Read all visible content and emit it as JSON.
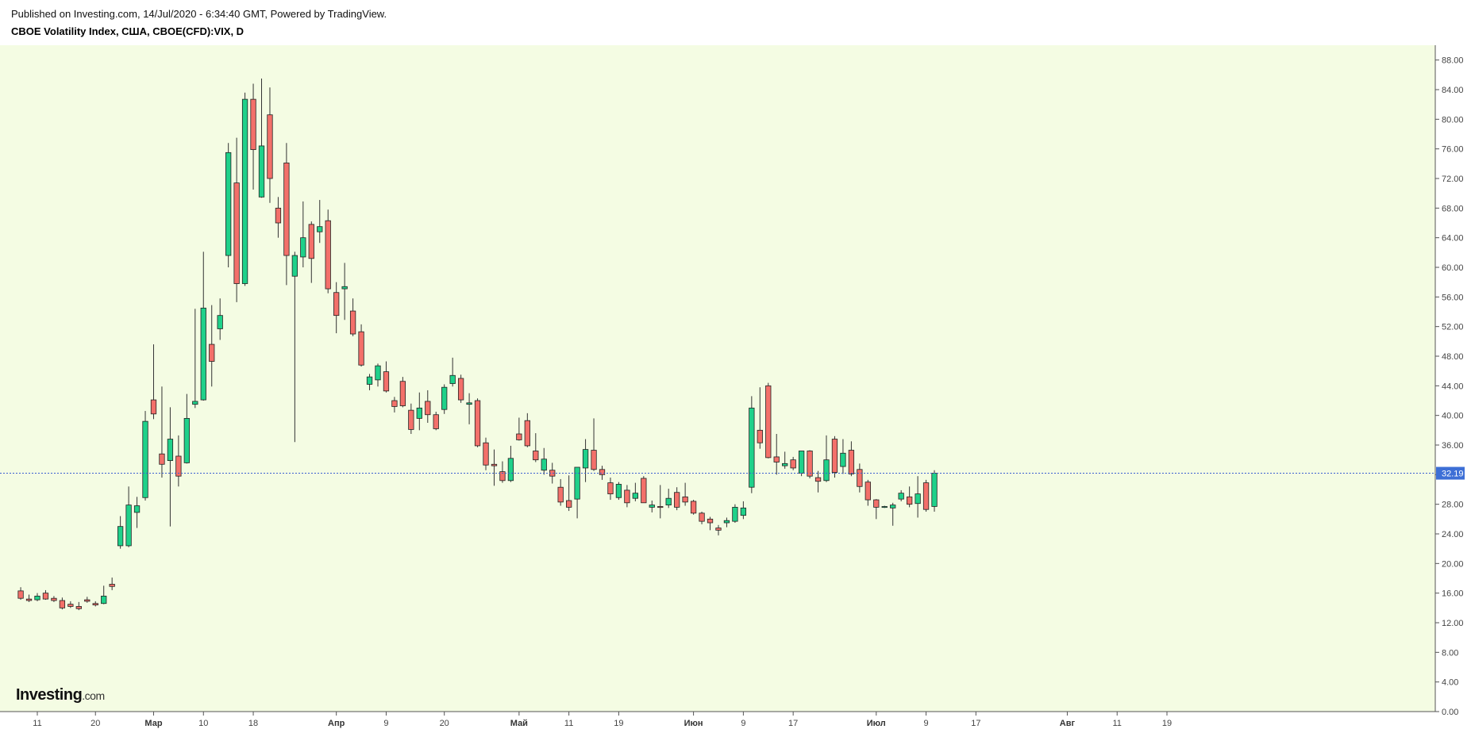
{
  "header": {
    "published": "Published on Investing.com, 14/Jul/2020 - 6:34:40 GMT, Powered by TradingView.",
    "symbol": "CBOE Volatility Index, США, CBOE(CFD):VIX, D"
  },
  "logo": {
    "name": "Investing",
    "suffix": ".com"
  },
  "colors": {
    "plot_bg": "#f4fce3",
    "up": "#1fd18a",
    "down": "#f3706a",
    "wick": "#333333",
    "last_price_line": "#3a5fd0",
    "last_price_badge": "#3d6fd6"
  },
  "chart_data": {
    "type": "candlestick",
    "title": "CBOE Volatility Index, США, CBOE(CFD):VIX, D",
    "ylim": [
      0,
      90
    ],
    "y_ticks": [
      "0.00",
      "4.00",
      "8.00",
      "12.00",
      "16.00",
      "20.00",
      "24.00",
      "28.00",
      "32.00",
      "36.00",
      "40.00",
      "44.00",
      "48.00",
      "52.00",
      "56.00",
      "60.00",
      "64.00",
      "68.00",
      "72.00",
      "76.00",
      "80.00",
      "84.00",
      "88.00"
    ],
    "last_price": "32.19",
    "x_ticks": [
      {
        "label": "11",
        "date": "2020-02-11"
      },
      {
        "label": "20",
        "date": "2020-02-20"
      },
      {
        "label": "Мар",
        "date": "2020-03-01",
        "month": true
      },
      {
        "label": "10",
        "date": "2020-03-10"
      },
      {
        "label": "18",
        "date": "2020-03-18"
      },
      {
        "label": "Апр",
        "date": "2020-04-01",
        "month": true
      },
      {
        "label": "9",
        "date": "2020-04-09"
      },
      {
        "label": "20",
        "date": "2020-04-20"
      },
      {
        "label": "Май",
        "date": "2020-05-01",
        "month": true
      },
      {
        "label": "11",
        "date": "2020-05-11"
      },
      {
        "label": "19",
        "date": "2020-05-19"
      },
      {
        "label": "Июн",
        "date": "2020-06-01",
        "month": true
      },
      {
        "label": "9",
        "date": "2020-06-09"
      },
      {
        "label": "17",
        "date": "2020-06-17"
      },
      {
        "label": "Июл",
        "date": "2020-07-01",
        "month": true
      },
      {
        "label": "9",
        "date": "2020-07-09"
      },
      {
        "label": "17",
        "date": "2020-07-17"
      },
      {
        "label": "Авг",
        "date": "2020-08-01",
        "month": true
      },
      {
        "label": "11",
        "date": "2020-08-11"
      },
      {
        "label": "19",
        "date": "2020-08-19"
      }
    ],
    "candles": [
      {
        "o": 16.3,
        "h": 16.8,
        "l": 15.1,
        "c": 15.3
      },
      {
        "o": 15.2,
        "h": 15.8,
        "l": 14.8,
        "c": 15.0
      },
      {
        "o": 15.1,
        "h": 16.0,
        "l": 14.9,
        "c": 15.6
      },
      {
        "o": 16.0,
        "h": 16.4,
        "l": 15.1,
        "c": 15.2
      },
      {
        "o": 15.3,
        "h": 15.6,
        "l": 14.8,
        "c": 15.0
      },
      {
        "o": 15.0,
        "h": 15.4,
        "l": 13.8,
        "c": 14.0
      },
      {
        "o": 14.5,
        "h": 14.9,
        "l": 14.0,
        "c": 14.2
      },
      {
        "o": 14.2,
        "h": 14.8,
        "l": 13.7,
        "c": 13.9
      },
      {
        "o": 15.1,
        "h": 15.5,
        "l": 14.7,
        "c": 14.9
      },
      {
        "o": 14.6,
        "h": 14.9,
        "l": 14.2,
        "c": 14.4
      },
      {
        "o": 14.6,
        "h": 17.0,
        "l": 14.5,
        "c": 15.6
      },
      {
        "o": 17.2,
        "h": 18.1,
        "l": 16.4,
        "c": 16.9
      },
      {
        "o": 22.4,
        "h": 26.4,
        "l": 22.0,
        "c": 25.0
      },
      {
        "o": 22.4,
        "h": 30.4,
        "l": 22.2,
        "c": 27.9
      },
      {
        "o": 26.9,
        "h": 29.0,
        "l": 24.8,
        "c": 27.8
      },
      {
        "o": 28.9,
        "h": 40.6,
        "l": 28.5,
        "c": 39.2
      },
      {
        "o": 42.1,
        "h": 49.6,
        "l": 39.5,
        "c": 40.2
      },
      {
        "o": 34.8,
        "h": 43.9,
        "l": 31.6,
        "c": 33.4
      },
      {
        "o": 33.9,
        "h": 41.1,
        "l": 25.0,
        "c": 36.8
      },
      {
        "o": 34.5,
        "h": 37.3,
        "l": 30.4,
        "c": 31.8
      },
      {
        "o": 33.6,
        "h": 42.9,
        "l": 33.5,
        "c": 39.6
      },
      {
        "o": 41.5,
        "h": 54.4,
        "l": 41.0,
        "c": 41.9
      },
      {
        "o": 42.1,
        "h": 62.1,
        "l": 42.0,
        "c": 54.5
      },
      {
        "o": 49.6,
        "h": 54.9,
        "l": 43.9,
        "c": 47.3
      },
      {
        "o": 51.7,
        "h": 55.8,
        "l": 50.2,
        "c": 53.5
      },
      {
        "o": 61.6,
        "h": 76.8,
        "l": 60.0,
        "c": 75.5
      },
      {
        "o": 71.4,
        "h": 77.5,
        "l": 55.3,
        "c": 57.8
      },
      {
        "o": 57.8,
        "h": 83.6,
        "l": 57.5,
        "c": 82.7
      },
      {
        "o": 82.7,
        "h": 84.8,
        "l": 70.5,
        "c": 75.9
      },
      {
        "o": 69.5,
        "h": 85.5,
        "l": 69.4,
        "c": 76.4
      },
      {
        "o": 80.6,
        "h": 84.3,
        "l": 68.7,
        "c": 72.0
      },
      {
        "o": 68.0,
        "h": 69.5,
        "l": 64.0,
        "c": 66.0
      },
      {
        "o": 74.1,
        "h": 76.8,
        "l": 57.6,
        "c": 61.6
      },
      {
        "o": 58.8,
        "h": 62.1,
        "l": 36.4,
        "c": 61.6
      },
      {
        "o": 61.4,
        "h": 68.9,
        "l": 60.0,
        "c": 64.0
      },
      {
        "o": 65.8,
        "h": 66.2,
        "l": 57.9,
        "c": 61.2
      },
      {
        "o": 64.8,
        "h": 69.1,
        "l": 63.3,
        "c": 65.5
      },
      {
        "o": 66.3,
        "h": 67.8,
        "l": 56.5,
        "c": 57.1
      },
      {
        "o": 56.6,
        "h": 58.0,
        "l": 51.1,
        "c": 53.5
      },
      {
        "o": 57.1,
        "h": 60.6,
        "l": 52.9,
        "c": 57.4
      },
      {
        "o": 54.1,
        "h": 55.8,
        "l": 50.7,
        "c": 51.0
      },
      {
        "o": 51.3,
        "h": 52.3,
        "l": 46.6,
        "c": 46.8
      },
      {
        "o": 44.2,
        "h": 45.6,
        "l": 43.4,
        "c": 45.2
      },
      {
        "o": 44.8,
        "h": 47.0,
        "l": 43.9,
        "c": 46.7
      },
      {
        "o": 45.9,
        "h": 47.3,
        "l": 43.1,
        "c": 43.3
      },
      {
        "o": 42.0,
        "h": 42.5,
        "l": 40.4,
        "c": 41.2
      },
      {
        "o": 44.6,
        "h": 45.2,
        "l": 41.1,
        "c": 41.3
      },
      {
        "o": 40.7,
        "h": 41.6,
        "l": 37.5,
        "c": 38.1
      },
      {
        "o": 39.6,
        "h": 43.1,
        "l": 38.0,
        "c": 41.0
      },
      {
        "o": 41.9,
        "h": 43.4,
        "l": 39.0,
        "c": 40.1
      },
      {
        "o": 40.1,
        "h": 40.5,
        "l": 38.0,
        "c": 38.2
      },
      {
        "o": 40.8,
        "h": 44.2,
        "l": 40.2,
        "c": 43.8
      },
      {
        "o": 44.3,
        "h": 47.8,
        "l": 43.9,
        "c": 45.4
      },
      {
        "o": 45.0,
        "h": 45.5,
        "l": 41.7,
        "c": 42.1
      },
      {
        "o": 41.5,
        "h": 43.0,
        "l": 38.8,
        "c": 41.7
      },
      {
        "o": 42.0,
        "h": 42.3,
        "l": 35.7,
        "c": 35.9
      },
      {
        "o": 36.3,
        "h": 37.0,
        "l": 32.6,
        "c": 33.3
      },
      {
        "o": 33.4,
        "h": 35.4,
        "l": 30.5,
        "c": 33.2
      },
      {
        "o": 32.4,
        "h": 33.8,
        "l": 30.9,
        "c": 31.2
      },
      {
        "o": 31.2,
        "h": 35.9,
        "l": 31.0,
        "c": 34.2
      },
      {
        "o": 37.5,
        "h": 39.7,
        "l": 36.6,
        "c": 36.7
      },
      {
        "o": 39.3,
        "h": 40.3,
        "l": 35.7,
        "c": 35.9
      },
      {
        "o": 35.2,
        "h": 37.6,
        "l": 33.7,
        "c": 34.0
      },
      {
        "o": 32.6,
        "h": 35.6,
        "l": 32.0,
        "c": 34.1
      },
      {
        "o": 32.6,
        "h": 33.6,
        "l": 30.8,
        "c": 31.8
      },
      {
        "o": 30.3,
        "h": 31.4,
        "l": 27.8,
        "c": 28.3
      },
      {
        "o": 28.5,
        "h": 31.9,
        "l": 27.1,
        "c": 27.6
      },
      {
        "o": 28.7,
        "h": 32.5,
        "l": 26.1,
        "c": 33.0
      },
      {
        "o": 32.9,
        "h": 36.8,
        "l": 31.0,
        "c": 35.4
      },
      {
        "o": 35.3,
        "h": 39.6,
        "l": 32.5,
        "c": 32.7
      },
      {
        "o": 32.7,
        "h": 33.2,
        "l": 31.3,
        "c": 32.0
      },
      {
        "o": 30.9,
        "h": 31.6,
        "l": 28.6,
        "c": 29.4
      },
      {
        "o": 28.9,
        "h": 31.0,
        "l": 28.6,
        "c": 30.7
      },
      {
        "o": 29.9,
        "h": 30.6,
        "l": 27.6,
        "c": 28.2
      },
      {
        "o": 28.8,
        "h": 30.9,
        "l": 28.4,
        "c": 29.5
      },
      {
        "o": 31.5,
        "h": 31.8,
        "l": 28.2,
        "c": 28.2
      },
      {
        "o": 27.6,
        "h": 28.5,
        "l": 26.9,
        "c": 27.9
      },
      {
        "o": 27.7,
        "h": 30.6,
        "l": 26.1,
        "c": 27.6
      },
      {
        "o": 27.9,
        "h": 30.1,
        "l": 27.5,
        "c": 28.8
      },
      {
        "o": 29.6,
        "h": 30.3,
        "l": 27.2,
        "c": 27.6
      },
      {
        "o": 29.0,
        "h": 30.9,
        "l": 27.8,
        "c": 28.3
      },
      {
        "o": 28.4,
        "h": 28.6,
        "l": 26.6,
        "c": 26.8
      },
      {
        "o": 26.8,
        "h": 27.0,
        "l": 25.3,
        "c": 25.7
      },
      {
        "o": 26.0,
        "h": 26.3,
        "l": 24.5,
        "c": 25.5
      },
      {
        "o": 24.8,
        "h": 25.2,
        "l": 23.8,
        "c": 24.5
      },
      {
        "o": 25.5,
        "h": 26.2,
        "l": 24.9,
        "c": 25.8
      },
      {
        "o": 25.7,
        "h": 28.0,
        "l": 25.5,
        "c": 27.6
      },
      {
        "o": 26.5,
        "h": 28.4,
        "l": 26.0,
        "c": 27.5
      },
      {
        "o": 30.3,
        "h": 42.6,
        "l": 29.5,
        "c": 41.0
      },
      {
        "o": 38.0,
        "h": 43.8,
        "l": 35.5,
        "c": 36.3
      },
      {
        "o": 44.0,
        "h": 44.4,
        "l": 34.2,
        "c": 34.3
      },
      {
        "o": 34.4,
        "h": 37.5,
        "l": 32.0,
        "c": 33.7
      },
      {
        "o": 33.2,
        "h": 35.1,
        "l": 32.8,
        "c": 33.5
      },
      {
        "o": 34.0,
        "h": 34.4,
        "l": 32.6,
        "c": 32.9
      },
      {
        "o": 32.2,
        "h": 35.2,
        "l": 31.8,
        "c": 35.2
      },
      {
        "o": 35.2,
        "h": 35.3,
        "l": 31.5,
        "c": 31.8
      },
      {
        "o": 31.6,
        "h": 32.5,
        "l": 29.6,
        "c": 31.1
      },
      {
        "o": 31.2,
        "h": 37.3,
        "l": 31.0,
        "c": 34.0
      },
      {
        "o": 36.8,
        "h": 37.2,
        "l": 31.6,
        "c": 32.3
      },
      {
        "o": 33.1,
        "h": 36.8,
        "l": 32.1,
        "c": 34.9
      },
      {
        "o": 35.3,
        "h": 36.5,
        "l": 31.8,
        "c": 32.1
      },
      {
        "o": 32.7,
        "h": 33.5,
        "l": 29.6,
        "c": 30.4
      },
      {
        "o": 31.0,
        "h": 31.3,
        "l": 27.8,
        "c": 28.6
      },
      {
        "o": 28.6,
        "h": 28.7,
        "l": 26.0,
        "c": 27.6
      },
      {
        "o": 27.6,
        "h": 27.8,
        "l": 27.5,
        "c": 27.7
      },
      {
        "o": 27.5,
        "h": 28.2,
        "l": 25.1,
        "c": 27.9
      },
      {
        "o": 28.7,
        "h": 29.9,
        "l": 28.4,
        "c": 29.5
      },
      {
        "o": 29.0,
        "h": 30.4,
        "l": 27.6,
        "c": 28.0
      },
      {
        "o": 28.1,
        "h": 31.8,
        "l": 26.2,
        "c": 29.4
      },
      {
        "o": 30.9,
        "h": 31.3,
        "l": 27.0,
        "c": 27.3
      },
      {
        "o": 27.7,
        "h": 32.6,
        "l": 27.0,
        "c": 32.19
      }
    ]
  }
}
